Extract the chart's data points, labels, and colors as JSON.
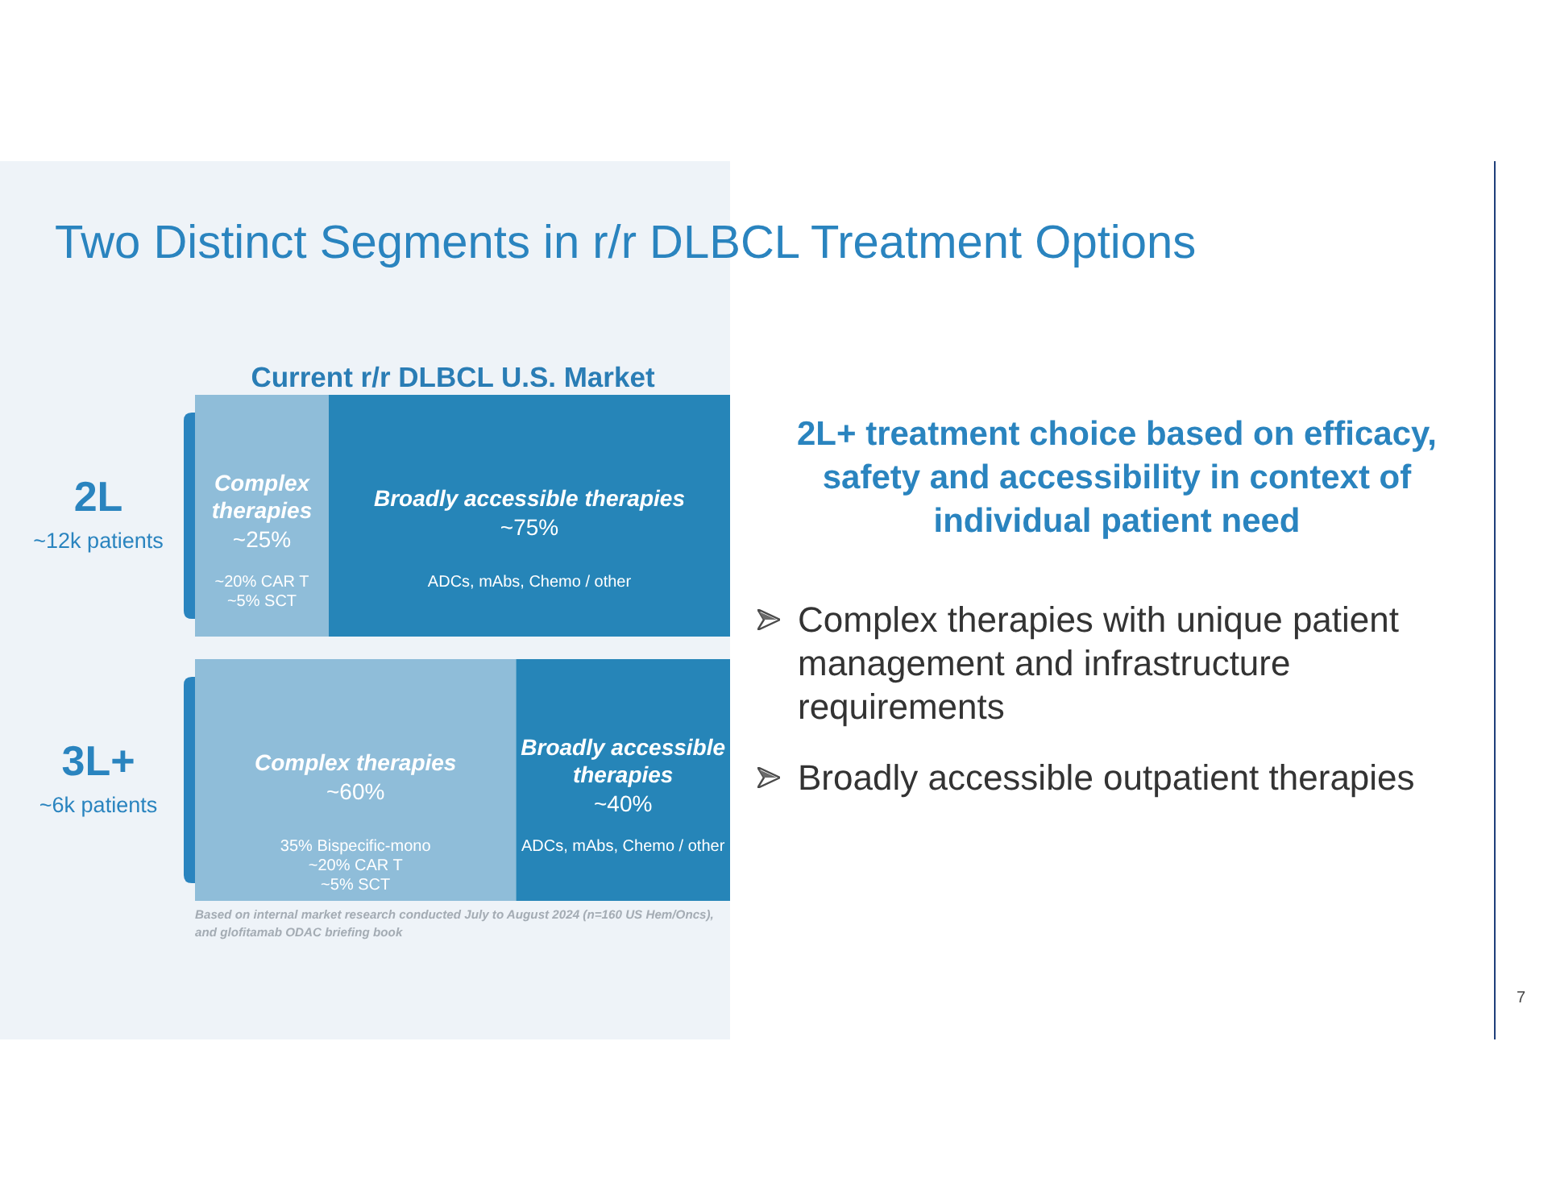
{
  "chart_data": {
    "type": "bar",
    "orientation": "horizontal",
    "stacked": true,
    "title": "Two Distinct Segments in r/r DLBCL Treatment Options",
    "subtitle": "Current r/r DLBCL U.S. Market",
    "categories": [
      "2L",
      "3L+"
    ],
    "series": [
      {
        "name": "Complex therapies",
        "color": "#8fbdd9",
        "values": [
          25,
          60
        ],
        "value_labels": [
          "~25%",
          "~60%"
        ]
      },
      {
        "name": "Broadly accessible therapies",
        "color": "#2685b8",
        "values": [
          75,
          40
        ],
        "value_labels": [
          "~75%",
          "~40%"
        ]
      }
    ],
    "tick_labels": "y",
    "annotations": [
      "~12k patients",
      "~6k patients",
      "~20% CAR T",
      "~5% SCT",
      "ADCs, mAbs, Chemo / other",
      "35% Bispecific-mono",
      "~20% CAR T",
      "~5% SCT",
      "ADCs, mAbs, Chemo / other",
      "Based on internal market research conducted July to August 2024 (n=160 US Hem/Oncs), and glofitamab ODAC briefing book",
      "2L+ treatment choice based on efficacy, safety and accessibility in context of individual patient need",
      "Complex therapies with unique patient management and infrastructure requirements",
      "Broadly accessible outpatient therapies",
      "7"
    ]
  }
}
